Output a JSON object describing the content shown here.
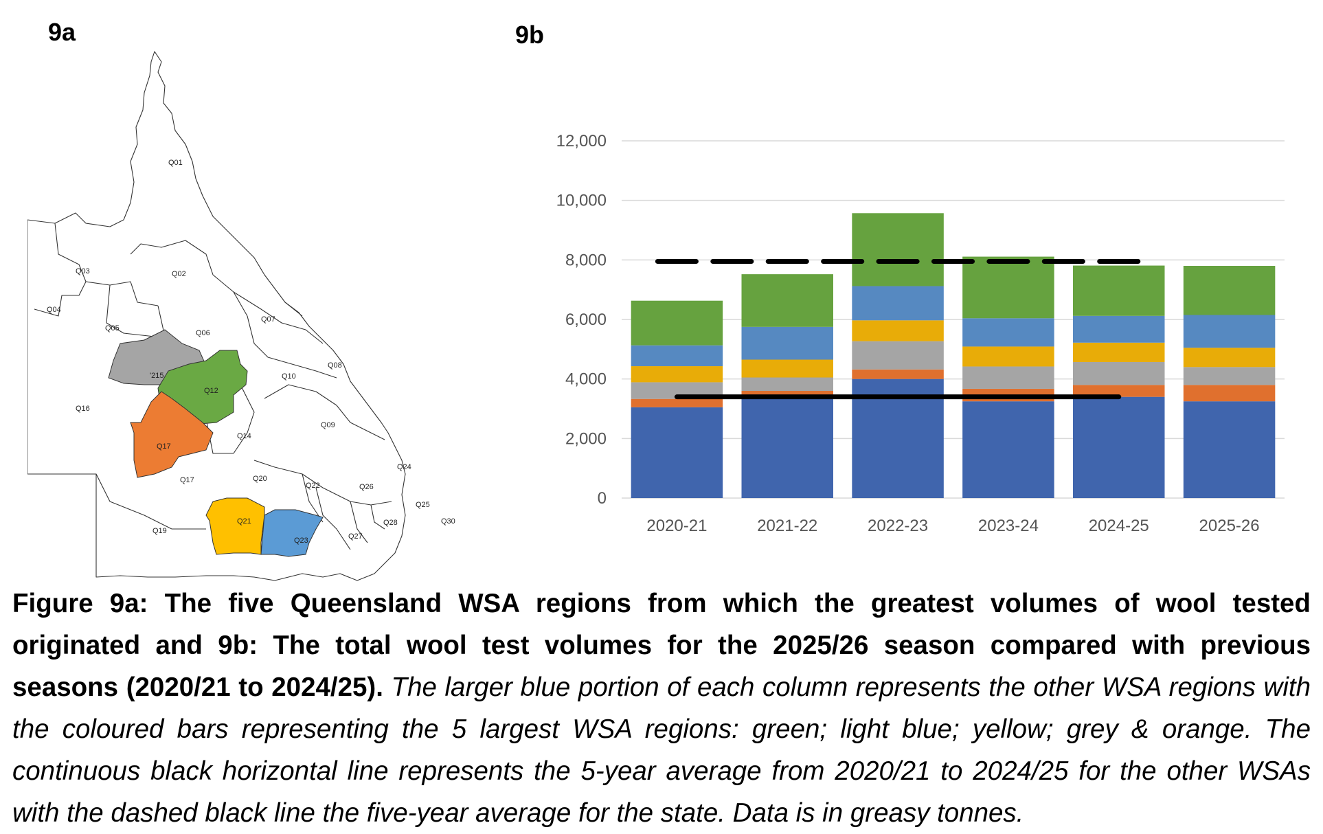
{
  "panel_a_label": "9a",
  "panel_b_label": "9b",
  "map": {
    "regions": [
      {
        "id": "Q01",
        "fill": "#ffffff"
      },
      {
        "id": "Q02",
        "fill": "#ffffff"
      },
      {
        "id": "Q03",
        "fill": "#ffffff"
      },
      {
        "id": "Q04",
        "fill": "#ffffff"
      },
      {
        "id": "Q05",
        "fill": "#ffffff"
      },
      {
        "id": "Q06",
        "fill": "#ffffff"
      },
      {
        "id": "Q07",
        "fill": "#ffffff"
      },
      {
        "id": "Q08",
        "fill": "#ffffff"
      },
      {
        "id": "Q09",
        "fill": "#ffffff"
      },
      {
        "id": "Q10",
        "fill": "#ffffff"
      },
      {
        "id": "Q12",
        "fill": "#6aa944"
      },
      {
        "id": "Q14",
        "fill": "#ffffff"
      },
      {
        "id": "Q15",
        "display": "'215",
        "fill": "#a5a5a5"
      },
      {
        "id": "Q16",
        "fill": "#ffffff"
      },
      {
        "id": "Q17",
        "fill": "#ec7c33"
      },
      {
        "id": "Q17b",
        "display": "Q17",
        "fill": "#ffffff"
      },
      {
        "id": "Q19",
        "fill": "#ffffff"
      },
      {
        "id": "Q20",
        "fill": "#ffffff"
      },
      {
        "id": "Q21",
        "fill": "#ffc000"
      },
      {
        "id": "Q22",
        "fill": "#ffffff"
      },
      {
        "id": "Q23",
        "fill": "#5b9bd5"
      },
      {
        "id": "Q24",
        "fill": "#ffffff"
      },
      {
        "id": "Q25",
        "fill": "#ffffff"
      },
      {
        "id": "Q26",
        "fill": "#ffffff"
      },
      {
        "id": "Q27",
        "fill": "#ffffff"
      },
      {
        "id": "Q28",
        "fill": "#ffffff"
      },
      {
        "id": "Q30",
        "fill": "#ffffff"
      }
    ]
  },
  "chart_data": {
    "type": "bar",
    "stacked": true,
    "categories": [
      "2020-21",
      "2021-22",
      "2022-23",
      "2023-24",
      "2024-25",
      "2025-26"
    ],
    "ylim": [
      0,
      12000
    ],
    "yticks": [
      "0",
      "2,000",
      "4,000",
      "6,000",
      "8,000",
      "10,000",
      "12,000"
    ],
    "grid": true,
    "series": [
      {
        "color": "#4065ad",
        "values": [
          3050,
          3400,
          4000,
          3250,
          3400,
          3250
        ]
      },
      {
        "color": "#e0702e",
        "values": [
          280,
          200,
          320,
          420,
          400,
          550
        ]
      },
      {
        "color": "#a5a5a5",
        "values": [
          560,
          450,
          950,
          750,
          770,
          600
        ]
      },
      {
        "color": "#e8ac08",
        "values": [
          540,
          600,
          700,
          670,
          650,
          650
        ]
      },
      {
        "color": "#5689c1",
        "values": [
          700,
          1100,
          1150,
          950,
          900,
          1100
        ]
      },
      {
        "color": "#66a23f",
        "values": [
          1500,
          1770,
          2450,
          2070,
          1690,
          1650
        ]
      }
    ],
    "lines": [
      {
        "style": "dashed",
        "value": 7950,
        "from": "2020-21",
        "to": "2024-25"
      },
      {
        "style": "solid",
        "value": 3400,
        "from": "2020-21",
        "to": "2024-25"
      }
    ]
  },
  "caption": {
    "bold": "Figure 9a: The five Queensland WSA regions from which the greatest volumes of wool tested originated and 9b: The total wool test volumes for the 2025/26 season compared with previous seasons (2020/21 to 2024/25).",
    "italic": "The larger blue portion of each column represents the other WSA regions with the coloured bars representing the 5 largest WSA regions: green; light blue; yellow; grey & orange. The continuous black horizontal line represents the 5-year average from 2020/21 to 2024/25 for the other WSAs with the dashed black line the five-year average for the state. Data is in greasy tonnes."
  }
}
